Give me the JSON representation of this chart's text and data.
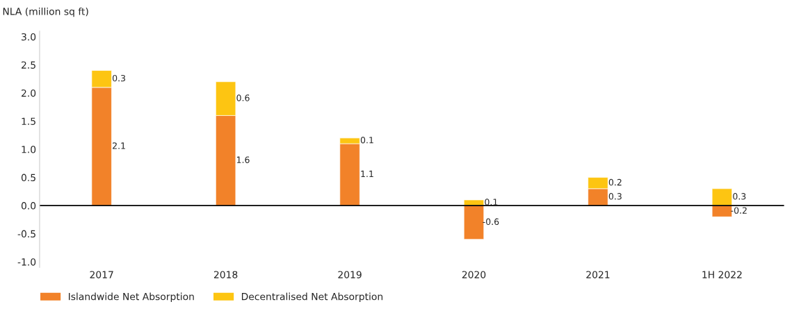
{
  "chart_data": {
    "type": "bar",
    "stacked": true,
    "ylabel": "NLA (million sq ft)",
    "categories": [
      "2017",
      "2018",
      "2019",
      "2020",
      "2021",
      "1H 2022"
    ],
    "series": [
      {
        "name": "Islandwide Net Absorption",
        "color": "#f28229",
        "values": [
          2.1,
          1.6,
          1.1,
          -0.6,
          0.3,
          -0.2
        ]
      },
      {
        "name": "Decentralised Net Absorption",
        "color": "#fdc512",
        "values": [
          0.3,
          0.6,
          0.1,
          0.1,
          0.2,
          0.3
        ]
      }
    ],
    "ylim": [
      -1.1,
      3.1
    ],
    "yticks": [
      {
        "value": -1,
        "label": "-1.0"
      },
      {
        "value": -0.5,
        "label": "-0.5"
      },
      {
        "value": 0,
        "label": "0.0"
      },
      {
        "value": 0.5,
        "label": "0.5"
      },
      {
        "value": 1,
        "label": "1.0"
      },
      {
        "value": 1.5,
        "label": "1.5"
      },
      {
        "value": 2,
        "label": "2.0"
      },
      {
        "value": 2.5,
        "label": "2.5"
      },
      {
        "value": 3,
        "label": "3.0"
      }
    ],
    "ref_lines": [
      {
        "axis": "y",
        "value": 0,
        "color": "#000000"
      }
    ],
    "data_labels": true,
    "grid": false,
    "legend": "bottom left"
  }
}
